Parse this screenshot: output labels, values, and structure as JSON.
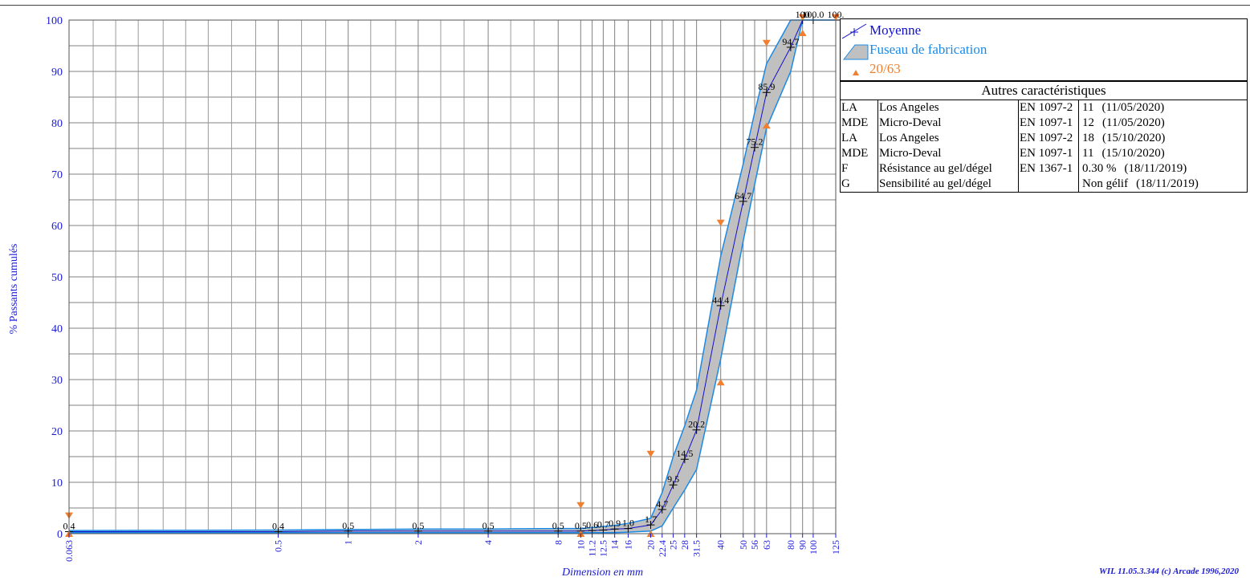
{
  "chart_data": {
    "type": "line",
    "xlabel": "Dimension en mm",
    "ylabel": "% Passants cumulés",
    "x_scale": "log",
    "xlim": [
      0.063,
      125
    ],
    "ylim": [
      0,
      100
    ],
    "y_ticks": [
      0,
      10,
      20,
      30,
      40,
      50,
      60,
      70,
      80,
      90,
      100
    ],
    "x_tick_labels": [
      "0.063",
      "0.5",
      "1",
      "2",
      "4",
      "8",
      "10",
      "11.2",
      "12.5",
      "14",
      "16",
      "20",
      "22.4",
      "25",
      "28",
      "31.5",
      "40",
      "50",
      "56",
      "63",
      "80",
      "90",
      "100",
      "125"
    ],
    "sieves": [
      0.063,
      0.5,
      1,
      2,
      4,
      8,
      10,
      11.2,
      12.5,
      14,
      16,
      20,
      22.4,
      25,
      28,
      31.5,
      40,
      50,
      56,
      63,
      80,
      90,
      100,
      125
    ],
    "series": [
      {
        "name": "Moyenne",
        "color": "#1010d0",
        "x": [
          0.063,
          0.5,
          1,
          2,
          4,
          8,
          10,
          11.2,
          12.5,
          14,
          16,
          20,
          22.4,
          25,
          28,
          31.5,
          40,
          50,
          56,
          63,
          80,
          90,
          100,
          125
        ],
        "values": [
          0.4,
          0.4,
          0.5,
          0.5,
          0.5,
          0.5,
          0.5,
          0.6,
          0.7,
          0.9,
          1.0,
          1.7,
          4.7,
          9.5,
          14.5,
          20.2,
          44.4,
          64.7,
          75.2,
          85.9,
          94.7,
          100,
          100.0,
          100
        ],
        "data_labels": [
          "0.4",
          "0.4",
          "0.5",
          "0.5",
          "0.5",
          "0.5",
          "0.5",
          "0.6",
          "0.7",
          "0.9",
          "1.0",
          "1.7",
          "4.7",
          "9.5",
          "14.5",
          "20.2",
          "44.4",
          "64.7",
          "75.2",
          "85.9",
          "94.7",
          "100",
          "100.0",
          "100."
        ]
      },
      {
        "name": "Fuseau de fabrication",
        "color": "#1a8ae6",
        "fill": "#c0c0c0",
        "x": [
          0.063,
          0.5,
          1,
          2,
          4,
          8,
          10,
          11.2,
          12.5,
          14,
          16,
          20,
          22.4,
          25,
          28,
          31.5,
          40,
          50,
          56,
          63,
          80,
          90,
          100,
          125
        ],
        "upper": [
          0.6,
          0.7,
          0.8,
          0.9,
          0.9,
          1.0,
          1.0,
          1.2,
          1.4,
          1.6,
          2.0,
          3.0,
          8.0,
          15.0,
          21.0,
          28.0,
          54.0,
          72.0,
          82.0,
          91.5,
          100,
          100,
          100,
          100
        ],
        "lower": [
          0.2,
          0.2,
          0.2,
          0.2,
          0.2,
          0.2,
          0.2,
          0.2,
          0.2,
          0.2,
          0.3,
          0.5,
          1.5,
          5.0,
          8.5,
          12.5,
          34.0,
          57.0,
          68.0,
          79.0,
          90.0,
          100,
          100,
          100
        ]
      },
      {
        "name": "20/63",
        "color": "#f08030",
        "upper_markers": [
          {
            "x": 0.063,
            "y": 3.5
          },
          {
            "x": 10,
            "y": 5.5
          },
          {
            "x": 20,
            "y": 15.5
          },
          {
            "x": 40,
            "y": 60.5
          },
          {
            "x": 63,
            "y": 95.5
          },
          {
            "x": 90,
            "y": 100.5
          },
          {
            "x": 125,
            "y": 100.5
          }
        ],
        "lower_markers": [
          {
            "x": 0.063,
            "y": 0
          },
          {
            "x": 10,
            "y": 0
          },
          {
            "x": 20,
            "y": 0
          },
          {
            "x": 40,
            "y": 29.5
          },
          {
            "x": 63,
            "y": 79.5
          },
          {
            "x": 90,
            "y": 97.5
          }
        ]
      }
    ],
    "legend": [
      "Moyenne",
      "Fuseau de fabrication",
      "20/63"
    ]
  },
  "others": {
    "title": "Autres caractéristiques",
    "rows": [
      {
        "code": "LA",
        "name": "Los Angeles",
        "norm": "EN 1097-2",
        "value": "11",
        "date": "(11/05/2020)"
      },
      {
        "code": "MDE",
        "name": "Micro-Deval",
        "norm": "EN 1097-1",
        "value": "12",
        "date": "(11/05/2020)"
      },
      {
        "code": "LA",
        "name": "Los Angeles",
        "norm": "EN 1097-2",
        "value": "18",
        "date": "(15/10/2020)"
      },
      {
        "code": "MDE",
        "name": "Micro-Deval",
        "norm": "EN 1097-1",
        "value": "11",
        "date": "(15/10/2020)"
      },
      {
        "code": "F",
        "name": "Résistance au gel/dégel",
        "norm": "EN 1367-1",
        "value": "0.30 %",
        "date": "(18/11/2019)"
      },
      {
        "code": "G",
        "name": "Sensibilité au gel/dégel",
        "norm": "",
        "value": "Non gélif",
        "date": "(18/11/2019)"
      }
    ]
  },
  "footer": {
    "credit": "WIL 11.05.3.344 (c) Arcade 1996,2020"
  }
}
